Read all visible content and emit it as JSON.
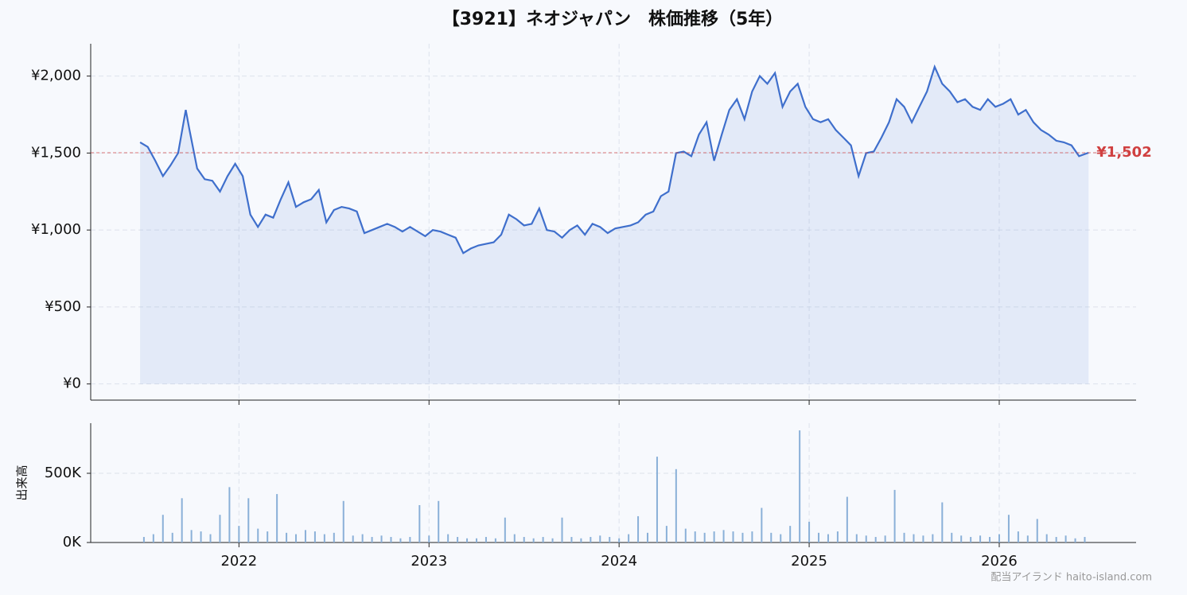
{
  "chart_data": [
    {
      "type": "line",
      "title": "【3921】ネオジャパン　株価推移（5年）",
      "x": [
        2021.48,
        2021.52,
        2021.56,
        2021.6,
        2021.64,
        2021.68,
        2021.72,
        2021.74,
        2021.78,
        2021.82,
        2021.86,
        2021.9,
        2021.94,
        2021.98,
        2022.02,
        2022.06,
        2022.1,
        2022.14,
        2022.18,
        2022.22,
        2022.26,
        2022.3,
        2022.34,
        2022.38,
        2022.42,
        2022.46,
        2022.5,
        2022.54,
        2022.58,
        2022.62,
        2022.66,
        2022.7,
        2022.74,
        2022.78,
        2022.82,
        2022.86,
        2022.9,
        2022.94,
        2022.98,
        2023.02,
        2023.06,
        2023.1,
        2023.14,
        2023.18,
        2023.22,
        2023.26,
        2023.3,
        2023.34,
        2023.38,
        2023.42,
        2023.46,
        2023.5,
        2023.54,
        2023.58,
        2023.62,
        2023.66,
        2023.7,
        2023.74,
        2023.78,
        2023.82,
        2023.86,
        2023.9,
        2023.94,
        2023.98,
        2024.02,
        2024.06,
        2024.1,
        2024.14,
        2024.18,
        2024.22,
        2024.26,
        2024.3,
        2024.34,
        2024.38,
        2024.42,
        2024.46,
        2024.5,
        2024.54,
        2024.58,
        2024.62,
        2024.66,
        2024.7,
        2024.74,
        2024.78,
        2024.82,
        2024.86,
        2024.9,
        2024.94,
        2024.98,
        2025.02,
        2025.06,
        2025.1,
        2025.14,
        2025.18,
        2025.22,
        2025.26,
        2025.3,
        2025.34,
        2025.38,
        2025.42,
        2025.46,
        2025.5,
        2025.54,
        2025.58,
        2025.62,
        2025.66,
        2025.7,
        2025.74,
        2025.78,
        2025.82,
        2025.86,
        2025.9,
        2025.94,
        2025.98,
        2026.02,
        2026.06,
        2026.1,
        2026.14,
        2026.18,
        2026.22,
        2026.26,
        2026.3,
        2026.34,
        2026.38,
        2026.42,
        2026.47
      ],
      "series": [
        {
          "color": "#3f6fcc",
          "values": [
            1570,
            1540,
            1450,
            1350,
            1420,
            1500,
            1780,
            1650,
            1400,
            1330,
            1320,
            1250,
            1350,
            1430,
            1350,
            1100,
            1020,
            1100,
            1080,
            1200,
            1310,
            1150,
            1180,
            1200,
            1260,
            1050,
            1130,
            1150,
            1140,
            1120,
            980,
            1000,
            1020,
            1040,
            1020,
            990,
            1020,
            990,
            960,
            1000,
            990,
            970,
            950,
            850,
            880,
            900,
            910,
            920,
            970,
            1100,
            1070,
            1030,
            1040,
            1140,
            1000,
            990,
            950,
            1000,
            1030,
            970,
            1040,
            1020,
            980,
            1010,
            1020,
            1030,
            1050,
            1100,
            1120,
            1220,
            1250,
            1500,
            1510,
            1480,
            1620,
            1700,
            1450,
            1620,
            1780,
            1850,
            1720,
            1900,
            2000,
            1950,
            2020,
            1800,
            1900,
            1950,
            1800,
            1720,
            1700,
            1720,
            1650,
            1600,
            1550,
            1350,
            1500,
            1510,
            1600,
            1700,
            1850,
            1800,
            1700,
            1800,
            1900,
            2060,
            1950,
            1900,
            1830,
            1850,
            1800,
            1780,
            1850,
            1800,
            1820,
            1850,
            1750,
            1780,
            1700,
            1650,
            1620,
            1580,
            1570,
            1550,
            1480,
            1502
          ]
        }
      ],
      "xlim": [
        2021.22,
        2026.72
      ],
      "ylim": [
        -105,
        2210
      ],
      "xticks": [
        2022,
        2023,
        2024,
        2025,
        2026
      ],
      "yticks": [
        {
          "value": 0,
          "label": "¥0"
        },
        {
          "value": 500,
          "label": "¥500"
        },
        {
          "value": 1000,
          "label": "¥1,000"
        },
        {
          "value": 1500,
          "label": "¥1,500"
        },
        {
          "value": 2000,
          "label": "¥2,000"
        }
      ],
      "grid": true,
      "reference_line": {
        "value": 1502,
        "label": "¥1,502",
        "color": "#d04040"
      }
    },
    {
      "type": "bar",
      "y_label": "出来高",
      "color": "#8ab0d8",
      "x": [
        2021.5,
        2021.55,
        2021.6,
        2021.65,
        2021.7,
        2021.75,
        2021.8,
        2021.85,
        2021.9,
        2021.95,
        2022.0,
        2022.05,
        2022.1,
        2022.15,
        2022.2,
        2022.25,
        2022.3,
        2022.35,
        2022.4,
        2022.45,
        2022.5,
        2022.55,
        2022.6,
        2022.65,
        2022.7,
        2022.75,
        2022.8,
        2022.85,
        2022.9,
        2022.95,
        2023.0,
        2023.05,
        2023.1,
        2023.15,
        2023.2,
        2023.25,
        2023.3,
        2023.35,
        2023.4,
        2023.45,
        2023.5,
        2023.55,
        2023.6,
        2023.65,
        2023.7,
        2023.75,
        2023.8,
        2023.85,
        2023.9,
        2023.95,
        2024.0,
        2024.05,
        2024.1,
        2024.15,
        2024.2,
        2024.25,
        2024.3,
        2024.35,
        2024.4,
        2024.45,
        2024.5,
        2024.55,
        2024.6,
        2024.65,
        2024.7,
        2024.75,
        2024.8,
        2024.85,
        2024.9,
        2024.95,
        2025.0,
        2025.05,
        2025.1,
        2025.15,
        2025.2,
        2025.25,
        2025.3,
        2025.35,
        2025.4,
        2025.45,
        2025.5,
        2025.55,
        2025.6,
        2025.65,
        2025.7,
        2025.75,
        2025.8,
        2025.85,
        2025.9,
        2025.95,
        2026.0,
        2026.05,
        2026.1,
        2026.15,
        2026.2,
        2026.25,
        2026.3,
        2026.35,
        2026.4,
        2026.45
      ],
      "values": [
        40000,
        60000,
        200000,
        70000,
        320000,
        90000,
        80000,
        60000,
        200000,
        400000,
        120000,
        320000,
        100000,
        80000,
        350000,
        70000,
        60000,
        90000,
        80000,
        60000,
        70000,
        300000,
        50000,
        60000,
        40000,
        50000,
        40000,
        30000,
        40000,
        270000,
        50000,
        300000,
        60000,
        40000,
        30000,
        30000,
        40000,
        30000,
        180000,
        60000,
        40000,
        30000,
        40000,
        30000,
        180000,
        40000,
        30000,
        40000,
        50000,
        40000,
        30000,
        60000,
        190000,
        70000,
        620000,
        120000,
        530000,
        100000,
        80000,
        70000,
        80000,
        90000,
        80000,
        70000,
        80000,
        250000,
        70000,
        60000,
        120000,
        810000,
        150000,
        70000,
        60000,
        80000,
        330000,
        60000,
        50000,
        40000,
        50000,
        380000,
        70000,
        60000,
        50000,
        60000,
        290000,
        70000,
        50000,
        40000,
        50000,
        40000,
        60000,
        200000,
        80000,
        50000,
        170000,
        60000,
        40000,
        50000,
        30000,
        40000
      ],
      "xlim": [
        2021.22,
        2026.72
      ],
      "ylim": [
        0,
        862000
      ],
      "xticks": [
        2022,
        2023,
        2024,
        2025,
        2026
      ],
      "yticks": [
        {
          "value": 0,
          "label": "0K"
        },
        {
          "value": 500000,
          "label": "500K"
        }
      ],
      "grid": true
    }
  ],
  "watermark": "配当アイランド haito-island.com"
}
